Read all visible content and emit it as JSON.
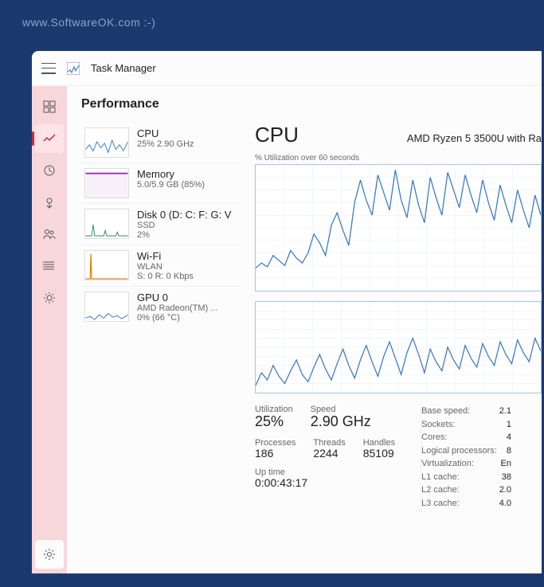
{
  "watermark": "www.SoftwareOK.com :-)",
  "window": {
    "title": "Task Manager"
  },
  "nav": {
    "items": [
      "processes",
      "performance",
      "history",
      "startup",
      "users",
      "details",
      "services"
    ],
    "selected_index": 1,
    "rail_bg": "#f8d7da",
    "accent": "#c52a47"
  },
  "page": {
    "title": "Performance"
  },
  "sidebar": {
    "items": [
      {
        "name": "CPU",
        "sub1": "25%  2.90 GHz",
        "sub2": "",
        "color": "#3b78c4",
        "pattern": "cpu"
      },
      {
        "name": "Memory",
        "sub1": "5.0/5.9 GB (85%)",
        "sub2": "",
        "color": "#9b2fae",
        "pattern": "mem"
      },
      {
        "name": "Disk 0 (D: C: F: G: V",
        "sub1": "SSD",
        "sub2": "2%",
        "color": "#2e8b57",
        "pattern": "disk"
      },
      {
        "name": "Wi-Fi",
        "sub1": "WLAN",
        "sub2": "S: 0 R: 0 Kbps",
        "color": "#d97a00",
        "pattern": "wifi"
      },
      {
        "name": "GPU 0",
        "sub1": "AMD Radeon(TM) ...",
        "sub2": "0%  (66 °C)",
        "color": "#3b78c4",
        "pattern": "gpu"
      }
    ]
  },
  "detail": {
    "title": "CPU",
    "model": "AMD Ryzen 5 3500U with Ra",
    "chart_label": "% Utilization over 60 seconds",
    "chart": {
      "line_color": "#3b78c4",
      "grid_color": "#e3eefb",
      "border_color": "#a9c5e8",
      "range": [
        0,
        100
      ],
      "series1": [
        18,
        22,
        19,
        28,
        24,
        20,
        32,
        26,
        22,
        30,
        45,
        38,
        28,
        52,
        62,
        48,
        36,
        70,
        88,
        72,
        60,
        92,
        78,
        64,
        96,
        72,
        58,
        88,
        68,
        54,
        90,
        74,
        60,
        94,
        80,
        66,
        92,
        76,
        62,
        88,
        70,
        56,
        84,
        68,
        54,
        80,
        64,
        50,
        76,
        60
      ],
      "series2": [
        8,
        22,
        14,
        30,
        18,
        10,
        24,
        36,
        20,
        12,
        28,
        42,
        26,
        14,
        32,
        48,
        30,
        16,
        36,
        52,
        34,
        18,
        40,
        56,
        38,
        20,
        44,
        60,
        42,
        22,
        48,
        34,
        24,
        50,
        36,
        26,
        52,
        38,
        28,
        54,
        40,
        30,
        56,
        42,
        32,
        58,
        44,
        34,
        60,
        46
      ]
    },
    "stats": {
      "utilization": {
        "label": "Utilization",
        "value": "25%"
      },
      "speed": {
        "label": "Speed",
        "value": "2.90 GHz"
      },
      "processes": {
        "label": "Processes",
        "value": "186"
      },
      "threads": {
        "label": "Threads",
        "value": "2244"
      },
      "handles": {
        "label": "Handles",
        "value": "85109"
      },
      "uptime": {
        "label": "Up time",
        "value": "0:00:43:17"
      }
    },
    "info": [
      {
        "k": "Base speed:",
        "v": "2.1"
      },
      {
        "k": "Sockets:",
        "v": "1"
      },
      {
        "k": "Cores:",
        "v": "4"
      },
      {
        "k": "Logical processors:",
        "v": "8"
      },
      {
        "k": "Virtualization:",
        "v": "En"
      },
      {
        "k": "L1 cache:",
        "v": "38"
      },
      {
        "k": "L2 cache:",
        "v": "2.0"
      },
      {
        "k": "L3 cache:",
        "v": "4.0"
      }
    ]
  }
}
